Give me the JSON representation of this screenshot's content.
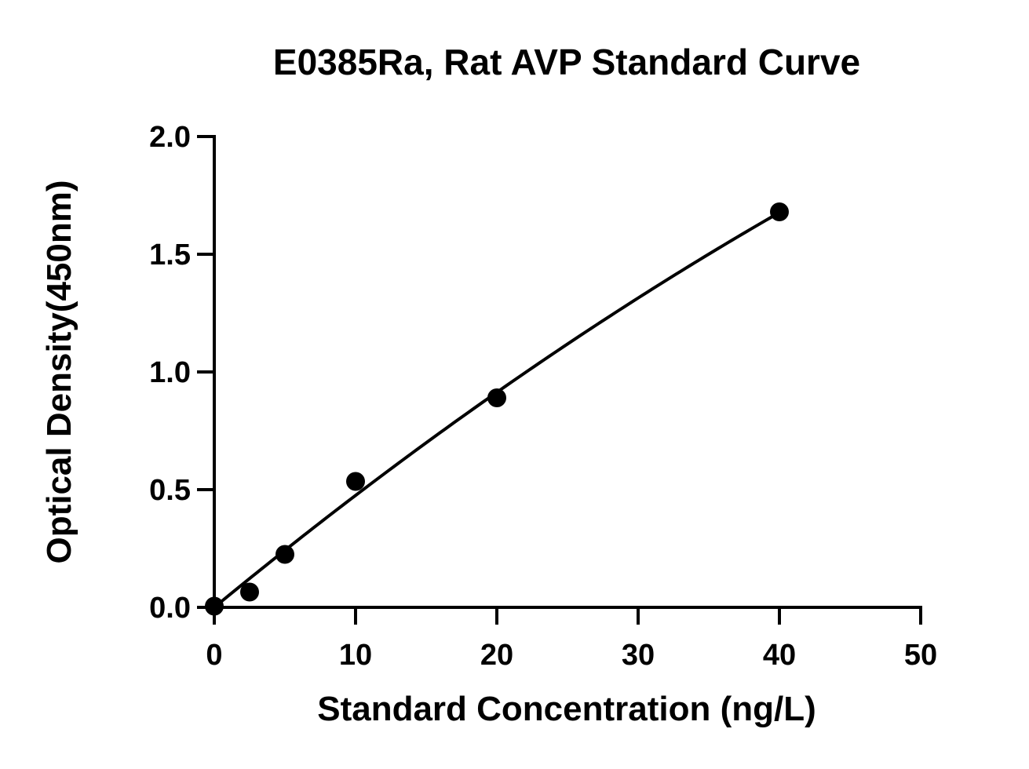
{
  "chart_data": {
    "type": "scatter",
    "title": "E0385Ra, Rat AVP Standard Curve",
    "xlabel": "Standard Concentration (ng/L)",
    "ylabel": "Optical Density(450nm)",
    "xlim": [
      0,
      50
    ],
    "ylim": [
      0,
      2.0
    ],
    "x_ticks": [
      0,
      10,
      20,
      30,
      40,
      50
    ],
    "x_tick_labels": [
      "0",
      "10",
      "20",
      "30",
      "40",
      "50"
    ],
    "y_ticks": [
      0.0,
      0.5,
      1.0,
      1.5,
      2.0
    ],
    "y_tick_labels": [
      "0.0",
      "0.5",
      "1.0",
      "1.5",
      "2.0"
    ],
    "grid": false,
    "series": [
      {
        "points": [
          {
            "x": 0,
            "y": 0.005
          },
          {
            "x": 2.5,
            "y": 0.065
          },
          {
            "x": 5,
            "y": 0.225
          },
          {
            "x": 10,
            "y": 0.535
          },
          {
            "x": 20,
            "y": 0.89
          },
          {
            "x": 40,
            "y": 1.68
          }
        ],
        "marker_color": "#000000"
      }
    ],
    "fit_curve": {
      "type": "smooth",
      "x_range": [
        0,
        40
      ],
      "color": "#000000"
    }
  }
}
